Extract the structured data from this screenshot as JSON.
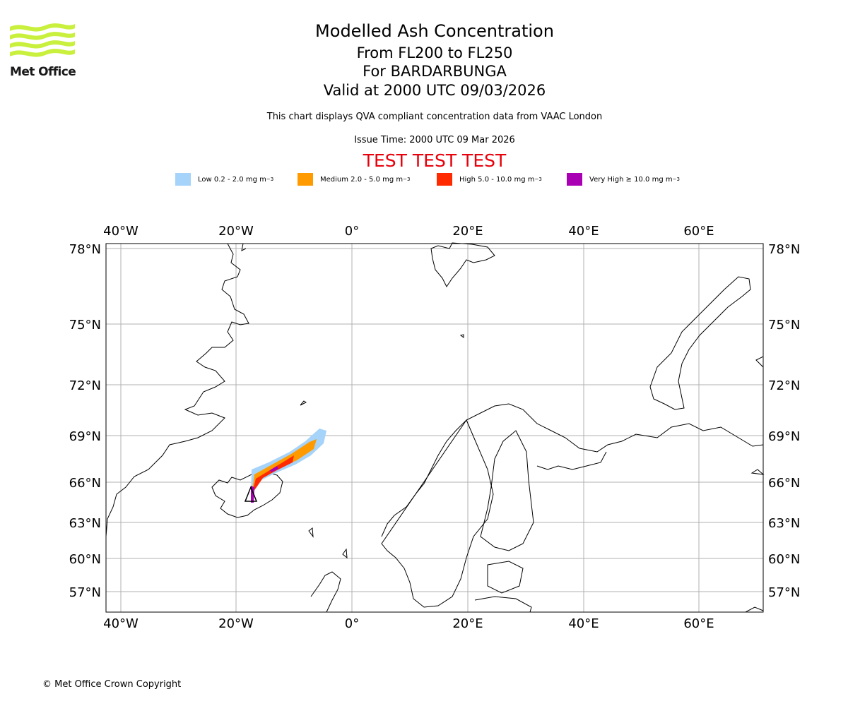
{
  "header": {
    "logo_text": "Met Office",
    "title": "Modelled Ash Concentration",
    "flight_levels": "From FL200 to FL250",
    "volcano": "For BARDARBUNGA",
    "valid_time": "Valid at 2000 UTC 09/03/2026",
    "description": "This chart displays QVA compliant concentration data from VAAC London",
    "issue_time": "Issue Time: 2000 UTC 09 Mar 2026",
    "test_banner": "TEST TEST TEST"
  },
  "legend": [
    {
      "label": "Low 0.2 - 2.0 mg m",
      "sup": "−3",
      "color": "#a5d3fa"
    },
    {
      "label": "Medium 2.0 - 5.0 mg m",
      "sup": "−3",
      "color": "#ff9b00"
    },
    {
      "label": "High 5.0 - 10.0 mg m",
      "sup": "−3",
      "color": "#ff2a00"
    },
    {
      "label": "Very High  ≥  10.0 mg m",
      "sup": "−3",
      "color": "#aa00b4"
    }
  ],
  "map": {
    "longitude_labels": [
      "40°W",
      "20°W",
      "0°",
      "20°E",
      "40°E",
      "60°E"
    ],
    "latitude_labels": [
      "78°N",
      "75°N",
      "72°N",
      "69°N",
      "66°N",
      "63°N",
      "60°N",
      "57°N"
    ],
    "volcano_marker": "triangle-icon"
  },
  "footer": {
    "copyright": "© Met Office Crown Copyright"
  }
}
